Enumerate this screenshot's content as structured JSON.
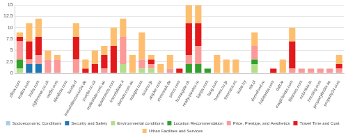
{
  "chart_data": {
    "type": "bar",
    "stacked": true,
    "grid": true,
    "legend": "bottom",
    "categories": [
      "zillow.com",
      "realtor.com",
      "trulia.com",
      "rightmove.co.uk",
      "redfin.com",
      "idealista.com",
      "funda.nl",
      "immobilienscout24.de",
      "zoopla.co.uk",
      "realestate.com.au",
      "apartments.com",
      "immobiliare.it",
      "domain.com.au",
      "seloger.com",
      "suumo.jp",
      "anjuke.com",
      "immowelt.de",
      "pisos.com",
      "homegate.ch",
      "realty.yandex.ru",
      "lianjia.com",
      "fang.com",
      "homes.co.jp",
      "fotocasa.es",
      "kufar.by",
      "olx.pl",
      "domofond.ru",
      "habitaclia.com",
      "daft.ie",
      "magicbricks.com",
      "99acres.com",
      "nobroker.in",
      "housing.com",
      "propertyfinder.ae",
      "property24.com"
    ],
    "ylim": [
      0,
      15
    ],
    "yticks": [
      0,
      2.5,
      5,
      7.5,
      10,
      12.5,
      15
    ],
    "series": [
      {
        "name": "Socioeconomic Conditions",
        "color": "#a6cee3",
        "values": [
          0,
          0,
          0,
          0,
          0,
          0,
          0,
          0,
          0,
          0,
          0,
          0,
          0,
          0,
          0,
          0,
          0,
          0,
          0,
          0,
          0,
          0,
          0,
          0,
          0,
          0,
          0,
          0,
          0,
          0,
          0,
          0,
          0,
          0,
          0
        ]
      },
      {
        "name": "Security and Safety",
        "color": "#1f78b4",
        "values": [
          0,
          2,
          2,
          0,
          0,
          0,
          0,
          0,
          0,
          0,
          0,
          0,
          0,
          0,
          0,
          0,
          0,
          0,
          0,
          0,
          0,
          0,
          0,
          0,
          0,
          0,
          0,
          0,
          0,
          0,
          0,
          0,
          0,
          0,
          0
        ]
      },
      {
        "name": "Environmental conditions",
        "color": "#b2df8a",
        "values": [
          1,
          0,
          0,
          0,
          0,
          0,
          0,
          0,
          0,
          0,
          0,
          2,
          0,
          1,
          1,
          0,
          0,
          0,
          0,
          0,
          0,
          0,
          0,
          0,
          0,
          2,
          0,
          0,
          0,
          0,
          0,
          0,
          0,
          0,
          0
        ]
      },
      {
        "name": "Location Recommendation",
        "color": "#33a02c",
        "values": [
          2,
          0,
          0,
          0,
          0,
          0,
          0,
          0,
          0,
          0,
          0,
          0,
          0,
          0,
          0,
          0,
          0,
          0,
          2,
          2,
          1,
          0,
          0,
          0,
          0,
          1,
          0,
          0,
          0,
          0,
          0,
          0,
          0,
          0,
          0
        ]
      },
      {
        "name": "Price, Prestige, and Aesthetics",
        "color": "#fb9a99",
        "values": [
          4,
          1,
          2,
          3,
          3,
          0,
          3,
          0,
          0,
          1,
          0,
          6,
          0,
          2,
          1,
          0,
          1,
          0,
          2,
          4,
          0,
          0,
          0,
          0,
          0,
          3,
          0,
          0,
          0,
          1,
          1,
          1,
          1,
          1,
          1
        ]
      },
      {
        "name": "Travel Time and Cost",
        "color": "#e31a1c",
        "values": [
          1,
          4,
          4,
          0,
          0,
          0,
          5,
          1,
          2,
          3,
          6,
          0,
          0,
          0,
          1,
          0,
          0,
          1,
          7,
          5,
          0,
          0,
          0,
          0,
          0,
          0,
          0,
          1,
          0,
          6,
          0,
          0,
          0,
          0,
          1
        ]
      },
      {
        "name": "Urban Facilities and Services",
        "color": "#fdbf6f",
        "values": [
          1,
          4,
          4,
          2,
          1,
          0,
          3,
          2,
          3,
          2,
          4,
          4,
          4,
          6,
          1,
          2,
          3,
          0,
          4,
          4,
          0,
          4,
          3,
          3,
          0,
          3,
          0,
          0,
          3,
          3,
          0,
          0,
          0,
          0,
          2
        ]
      }
    ]
  }
}
